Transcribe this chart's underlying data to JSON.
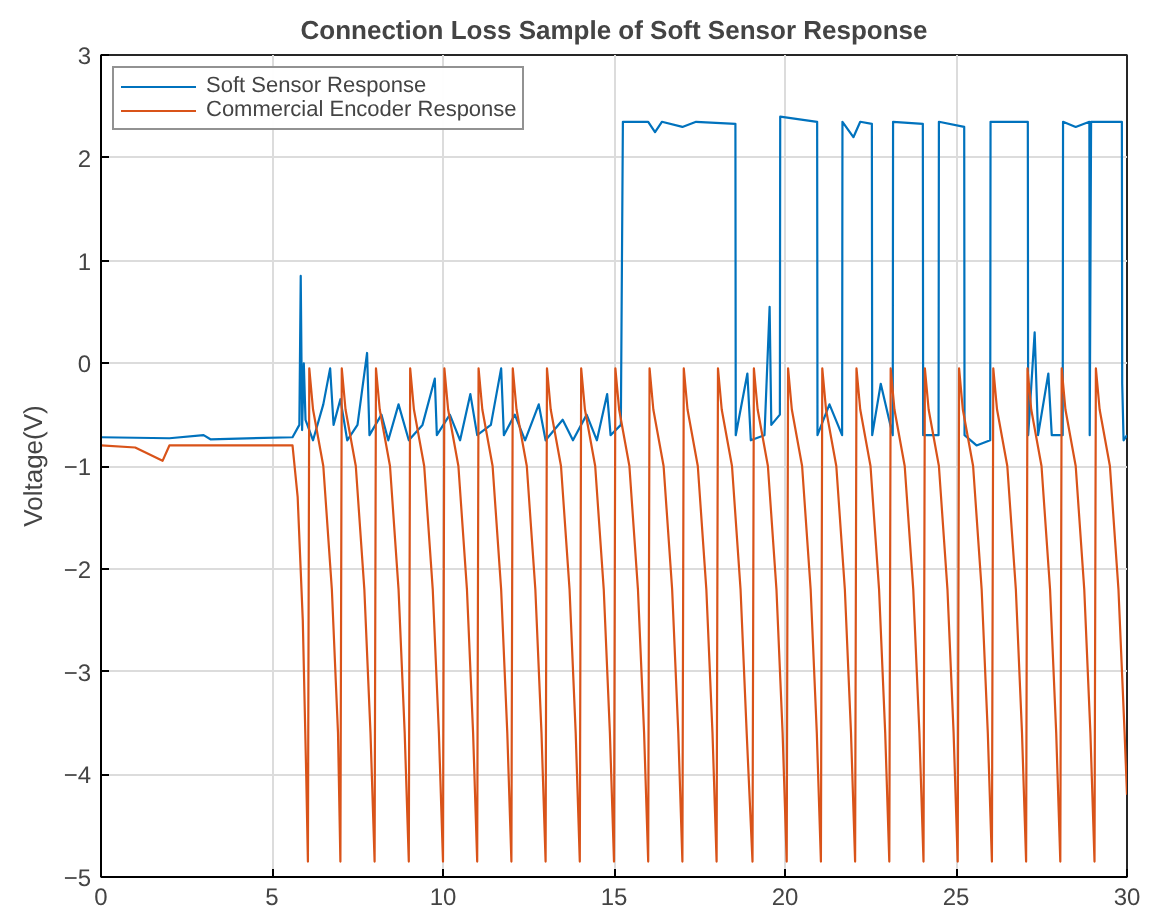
{
  "chart_data": {
    "type": "line",
    "title": "Connection Loss Sample of Soft Sensor Response",
    "ylabel": "Voltage(V)",
    "xlim": [
      0,
      30
    ],
    "xticks": [
      0,
      5,
      10,
      15,
      20,
      25,
      30
    ],
    "ylim": [
      -5,
      3
    ],
    "yticks": [
      -5,
      -4,
      -3,
      -2,
      -1,
      0,
      1,
      2,
      3
    ],
    "grid": true,
    "legend": "top left",
    "marker": "none",
    "line_style": "solid",
    "series": [
      {
        "name": "Soft Sensor Response",
        "color": "#0072bd",
        "x": [
          0,
          2,
          3,
          3.2,
          5.6,
          5.8,
          5.84,
          5.88,
          5.93,
          5.98,
          6.2,
          6.5,
          6.7,
          6.8,
          7.0,
          7.2,
          7.5,
          7.78,
          7.85,
          8.2,
          8.4,
          8.7,
          9.0,
          9.4,
          9.76,
          9.82,
          10.2,
          10.5,
          10.8,
          11.0,
          11.4,
          11.7,
          11.78,
          12.1,
          12.4,
          12.8,
          13.0,
          13.5,
          13.8,
          14.2,
          14.5,
          14.8,
          14.9,
          15.2,
          15.26,
          16.0,
          16.2,
          16.4,
          17.0,
          17.4,
          18.55,
          18.56,
          18.9,
          19.0,
          19.4,
          19.55,
          19.6,
          19.85,
          19.86,
          20.94,
          20.95,
          21.3,
          21.67,
          21.68,
          22.0,
          22.2,
          22.54,
          22.55,
          22.8,
          23.15,
          23.16,
          24.03,
          24.04,
          24.49,
          24.5,
          25.24,
          25.25,
          25.6,
          26.0,
          26.01,
          27.1,
          27.11,
          27.3,
          27.4,
          27.7,
          27.8,
          28.12,
          28.13,
          28.5,
          28.9,
          28.91,
          28.95,
          29.85,
          29.86,
          29.9,
          30
        ],
        "values": [
          -0.72,
          -0.73,
          -0.7,
          -0.74,
          -0.72,
          -0.6,
          0.85,
          -0.65,
          0.0,
          -0.55,
          -0.75,
          -0.4,
          -0.05,
          -0.6,
          -0.35,
          -0.75,
          -0.6,
          0.1,
          -0.7,
          -0.5,
          -0.75,
          -0.4,
          -0.75,
          -0.6,
          -0.15,
          -0.7,
          -0.5,
          -0.75,
          -0.3,
          -0.7,
          -0.6,
          -0.05,
          -0.7,
          -0.5,
          -0.75,
          -0.4,
          -0.75,
          -0.55,
          -0.75,
          -0.5,
          -0.75,
          -0.3,
          -0.7,
          -0.6,
          2.35,
          2.35,
          2.25,
          2.35,
          2.3,
          2.35,
          2.33,
          -0.7,
          -0.1,
          -0.75,
          -0.7,
          0.55,
          -0.6,
          -0.5,
          2.4,
          2.35,
          -0.7,
          -0.4,
          -0.7,
          2.35,
          2.2,
          2.35,
          2.33,
          -0.7,
          -0.2,
          -0.7,
          2.35,
          2.33,
          -0.7,
          -0.7,
          2.35,
          2.3,
          -0.7,
          -0.8,
          -0.75,
          2.35,
          2.35,
          -0.7,
          0.3,
          -0.7,
          -0.1,
          -0.7,
          -0.7,
          2.35,
          2.3,
          2.35,
          -0.7,
          2.35,
          2.35,
          -0.2,
          -0.75,
          -0.7
        ]
      },
      {
        "name": "Commercial Encoder Response",
        "color": "#d95319",
        "x": [
          0,
          1,
          1.8,
          2,
          4,
          5.6,
          5.75,
          5.9,
          6.0,
          6.05,
          6.09,
          6.2,
          6.5,
          6.75,
          6.93,
          7,
          7.04,
          7.15,
          7.45,
          7.7,
          7.88,
          8,
          8.04,
          8.15,
          8.45,
          8.7,
          8.88,
          9,
          9.04,
          9.15,
          9.45,
          9.7,
          9.88,
          10,
          10.04,
          10.15,
          10.45,
          10.7,
          10.88,
          11,
          11.04,
          11.15,
          11.45,
          11.7,
          11.88,
          12,
          12.04,
          12.15,
          12.45,
          12.7,
          12.88,
          13,
          13.04,
          13.15,
          13.45,
          13.7,
          13.88,
          14,
          14.04,
          14.15,
          14.45,
          14.7,
          14.88,
          15,
          15.04,
          15.15,
          15.45,
          15.7,
          15.88,
          16,
          16.04,
          16.15,
          16.45,
          16.7,
          16.88,
          17,
          17.04,
          17.15,
          17.45,
          17.7,
          17.88,
          18,
          18.04,
          18.15,
          18.45,
          18.7,
          18.88,
          19.05,
          19.09,
          19.2,
          19.5,
          19.75,
          19.93,
          20.05,
          20.09,
          20.2,
          20.5,
          20.75,
          20.93,
          21.05,
          21.09,
          21.2,
          21.5,
          21.75,
          21.93,
          22.05,
          22.09,
          22.2,
          22.5,
          22.75,
          22.93,
          23.05,
          23.09,
          23.2,
          23.5,
          23.75,
          23.93,
          24.05,
          24.09,
          24.2,
          24.5,
          24.75,
          24.93,
          25.05,
          25.09,
          25.2,
          25.5,
          25.75,
          25.93,
          26.05,
          26.09,
          26.2,
          26.5,
          26.75,
          26.93,
          27.05,
          27.09,
          27.2,
          27.5,
          27.75,
          27.93,
          28.05,
          28.09,
          28.2,
          28.5,
          28.75,
          28.93,
          29.05,
          29.09,
          29.2,
          29.5,
          29.75,
          29.93,
          30
        ],
        "values": [
          -0.8,
          -0.82,
          -0.95,
          -0.8,
          -0.8,
          -0.8,
          -1.3,
          -2.5,
          -4.0,
          -4.85,
          -0.05,
          -0.45,
          -1.0,
          -2.2,
          -3.6,
          -4.85,
          -0.05,
          -0.45,
          -1.0,
          -2.2,
          -3.6,
          -4.85,
          -0.05,
          -0.45,
          -1.0,
          -2.2,
          -3.6,
          -4.85,
          -0.05,
          -0.45,
          -1.0,
          -2.2,
          -3.6,
          -4.85,
          -0.05,
          -0.45,
          -1.0,
          -2.2,
          -3.6,
          -4.85,
          -0.05,
          -0.45,
          -1.0,
          -2.2,
          -3.6,
          -4.85,
          -0.05,
          -0.45,
          -1.0,
          -2.2,
          -3.6,
          -4.85,
          -0.05,
          -0.45,
          -1.0,
          -2.2,
          -3.6,
          -4.85,
          -0.05,
          -0.45,
          -1.0,
          -2.2,
          -3.6,
          -4.85,
          -0.05,
          -0.45,
          -1.0,
          -2.2,
          -3.6,
          -4.85,
          -0.05,
          -0.45,
          -1.0,
          -2.2,
          -3.6,
          -4.85,
          -0.05,
          -0.45,
          -1.0,
          -2.2,
          -3.6,
          -4.85,
          -0.05,
          -0.45,
          -1.0,
          -2.2,
          -3.6,
          -4.85,
          -0.05,
          -0.45,
          -1.0,
          -2.2,
          -3.6,
          -4.85,
          -0.05,
          -0.45,
          -1.0,
          -2.2,
          -3.6,
          -4.85,
          -0.05,
          -0.45,
          -1.0,
          -2.2,
          -3.6,
          -4.85,
          -0.05,
          -0.45,
          -1.0,
          -2.2,
          -3.6,
          -4.85,
          -0.05,
          -0.45,
          -1.0,
          -2.2,
          -3.6,
          -4.85,
          -0.05,
          -0.45,
          -1.0,
          -2.2,
          -3.6,
          -4.85,
          -0.05,
          -0.45,
          -1.0,
          -2.2,
          -3.6,
          -4.85,
          -0.05,
          -0.45,
          -1.0,
          -2.2,
          -3.6,
          -4.85,
          -0.05,
          -0.45,
          -1.0,
          -2.2,
          -3.6,
          -4.85,
          -0.05,
          -0.45,
          -1.0,
          -2.2,
          -3.6,
          -4.85,
          -0.05,
          -0.45,
          -1.0,
          -2.2,
          -3.6,
          -4.2
        ]
      }
    ]
  }
}
